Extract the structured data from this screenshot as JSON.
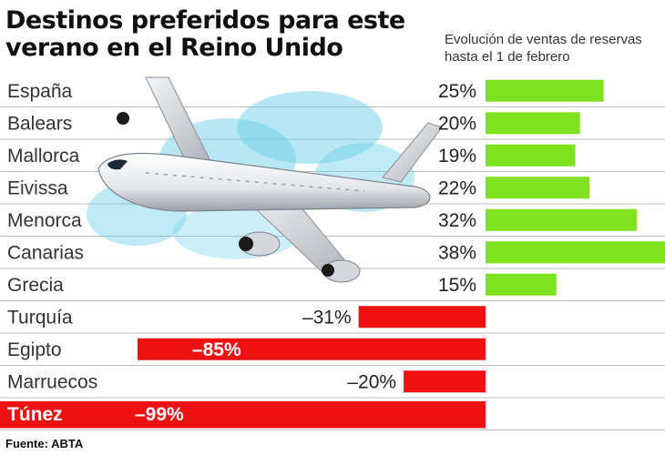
{
  "title": "Destinos preferidos para este verano en el Reino Unido",
  "subtitle": "Evolución de ventas de reservas hasta el 1 de febrero",
  "source": "Fuente: ABTA",
  "colors": {
    "positive": "#7ee21e",
    "negative": "#ee1111",
    "highlight_row": "#ee1111",
    "row_line": "#bbbbbb"
  },
  "illustration": "airplane",
  "chart_data": {
    "type": "bar",
    "orientation": "horizontal",
    "categories": [
      "España",
      "Balears",
      "Mallorca",
      "Eivissa",
      "Menorca",
      "Canarias",
      "Grecia",
      "Turquía",
      "Egipto",
      "Marruecos",
      "Túnez"
    ],
    "values": [
      25,
      20,
      19,
      22,
      32,
      38,
      15,
      -31,
      -85,
      -20,
      -99
    ],
    "value_labels": [
      "25%",
      "20%",
      "19%",
      "22%",
      "32%",
      "38%",
      "15%",
      "–31%",
      "–85%",
      "–20%",
      "–99%"
    ],
    "highlighted": "Túnez",
    "xlim": [
      -100,
      38
    ]
  }
}
